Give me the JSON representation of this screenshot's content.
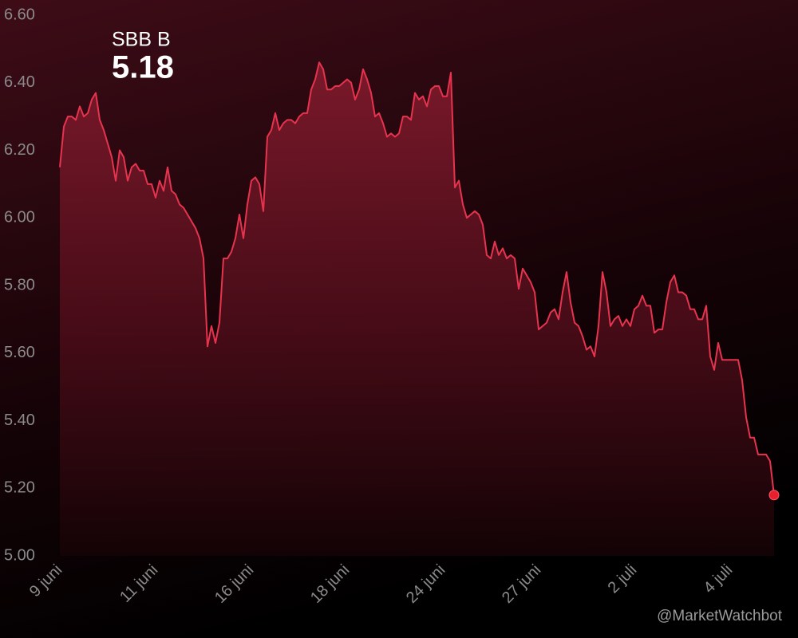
{
  "chart_data": {
    "type": "area",
    "title": "SBB B",
    "current": 5.18,
    "source": "@MarketWatchbot",
    "color": "#e8334f",
    "grid": false,
    "ylim": [
      5.0,
      6.6
    ],
    "yticks": [
      {
        "value": 5.0,
        "label": "5.00"
      },
      {
        "value": 5.2,
        "label": "5.20"
      },
      {
        "value": 5.4,
        "label": "5.40"
      },
      {
        "value": 5.6,
        "label": "5.60"
      },
      {
        "value": 5.8,
        "label": "5.80"
      },
      {
        "value": 6.0,
        "label": "6.00"
      },
      {
        "value": 6.2,
        "label": "6.20"
      },
      {
        "value": 6.4,
        "label": "6.40"
      },
      {
        "value": 6.6,
        "label": "6.60"
      }
    ],
    "categories": [
      "9 juni",
      null,
      null,
      null,
      null,
      null,
      null,
      null,
      null,
      null,
      null,
      null,
      null,
      null,
      null,
      null,
      null,
      null,
      null,
      null,
      null,
      null,
      null,
      null,
      "11 juni",
      null,
      null,
      null,
      null,
      null,
      null,
      null,
      null,
      null,
      null,
      null,
      null,
      null,
      null,
      null,
      null,
      null,
      null,
      null,
      null,
      null,
      null,
      null,
      "16 juni",
      null,
      null,
      null,
      null,
      null,
      null,
      null,
      null,
      null,
      null,
      null,
      null,
      null,
      null,
      null,
      null,
      null,
      null,
      null,
      null,
      null,
      null,
      null,
      "18 juni",
      null,
      null,
      null,
      null,
      null,
      null,
      null,
      null,
      null,
      null,
      null,
      null,
      null,
      null,
      null,
      null,
      null,
      null,
      null,
      null,
      null,
      null,
      null,
      "24 juni",
      null,
      null,
      null,
      null,
      null,
      null,
      null,
      null,
      null,
      null,
      null,
      null,
      null,
      null,
      null,
      null,
      null,
      null,
      null,
      null,
      null,
      null,
      null,
      "27 juni",
      null,
      null,
      null,
      null,
      null,
      null,
      null,
      null,
      null,
      null,
      null,
      null,
      null,
      null,
      null,
      null,
      null,
      null,
      null,
      null,
      null,
      null,
      null,
      "2 juli",
      null,
      null,
      null,
      null,
      null,
      null,
      null,
      null,
      null,
      null,
      null,
      null,
      null,
      null,
      null,
      null,
      null,
      null,
      null,
      null,
      null,
      null,
      null,
      "4 juli",
      null,
      null,
      null,
      null,
      null,
      null,
      null,
      null,
      null,
      null,
      null
    ],
    "values": [
      6.15,
      6.27,
      6.3,
      6.3,
      6.29,
      6.33,
      6.3,
      6.31,
      6.35,
      6.37,
      6.29,
      6.26,
      6.22,
      6.18,
      6.11,
      6.2,
      6.18,
      6.11,
      6.15,
      6.16,
      6.14,
      6.14,
      6.1,
      6.1,
      6.06,
      6.11,
      6.08,
      6.15,
      6.08,
      6.07,
      6.04,
      6.03,
      6.01,
      5.99,
      5.97,
      5.94,
      5.88,
      5.62,
      5.68,
      5.63,
      5.69,
      5.88,
      5.88,
      5.9,
      5.94,
      6.01,
      5.94,
      6.04,
      6.11,
      6.12,
      6.1,
      6.02,
      6.24,
      6.26,
      6.31,
      6.26,
      6.28,
      6.29,
      6.29,
      6.28,
      6.3,
      6.31,
      6.31,
      6.38,
      6.41,
      6.46,
      6.44,
      6.38,
      6.38,
      6.39,
      6.39,
      6.4,
      6.41,
      6.4,
      6.35,
      6.38,
      6.44,
      6.41,
      6.37,
      6.3,
      6.31,
      6.28,
      6.24,
      6.25,
      6.24,
      6.25,
      6.3,
      6.3,
      6.29,
      6.37,
      6.35,
      6.36,
      6.33,
      6.38,
      6.39,
      6.39,
      6.36,
      6.36,
      6.43,
      6.09,
      6.11,
      6.04,
      6.0,
      6.01,
      6.02,
      6.01,
      5.98,
      5.89,
      5.88,
      5.93,
      5.89,
      5.91,
      5.88,
      5.89,
      5.88,
      5.79,
      5.85,
      5.83,
      5.81,
      5.78,
      5.67,
      5.68,
      5.69,
      5.72,
      5.73,
      5.7,
      5.78,
      5.84,
      5.75,
      5.69,
      5.68,
      5.65,
      5.61,
      5.62,
      5.59,
      5.68,
      5.84,
      5.78,
      5.68,
      5.7,
      5.71,
      5.68,
      5.7,
      5.68,
      5.73,
      5.74,
      5.77,
      5.74,
      5.74,
      5.66,
      5.67,
      5.67,
      5.75,
      5.81,
      5.83,
      5.78,
      5.78,
      5.77,
      5.73,
      5.73,
      5.7,
      5.7,
      5.74,
      5.59,
      5.55,
      5.63,
      5.58,
      5.58,
      5.58,
      5.58,
      5.58,
      5.52,
      5.41,
      5.35,
      5.35,
      5.3,
      5.3,
      5.3,
      5.28,
      5.18
    ]
  }
}
